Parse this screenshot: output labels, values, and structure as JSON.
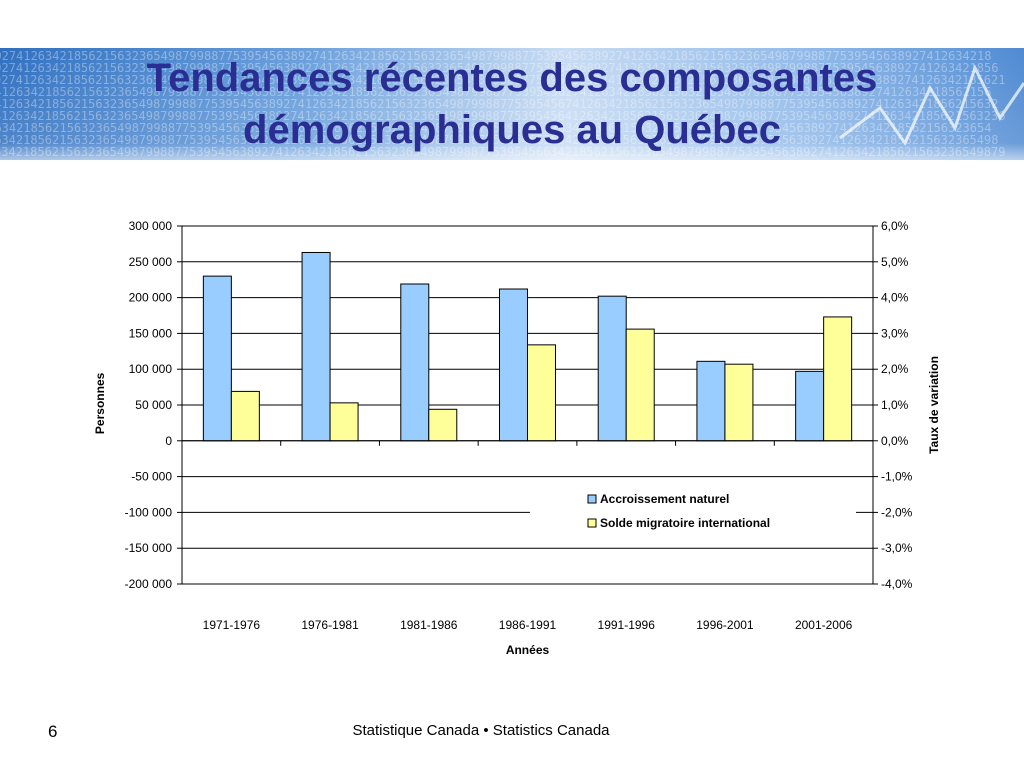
{
  "slide": {
    "title_line1": "Tendances récentes des composantes",
    "title_line2": "démographiques au Québec",
    "footer": "Statistique Canada • Statistics Canada",
    "page_number": "6",
    "banner_digits": "389274126342185621563236549879988775395456",
    "colors": {
      "title": "#2a2e92",
      "banner": "#2f6fc0"
    }
  },
  "chart_data": {
    "type": "bar",
    "categories": [
      "1971-1976",
      "1976-1981",
      "1981-1986",
      "1986-1991",
      "1991-1996",
      "1996-2001",
      "2001-2006"
    ],
    "series": [
      {
        "name": "Accroissement naturel",
        "color": "#99ccff",
        "values": [
          230000,
          263000,
          219000,
          212000,
          202000,
          111000,
          97000
        ]
      },
      {
        "name": "Solde migratoire international",
        "color": "#ffff99",
        "values": [
          69000,
          53000,
          44000,
          134000,
          156000,
          107000,
          173000
        ]
      }
    ],
    "xlabel": "Années",
    "ylabel": "Personnes",
    "y2label": "Taux de variation",
    "ylim": [
      -200000,
      300000
    ],
    "y_ticks": [
      300000,
      250000,
      200000,
      150000,
      100000,
      50000,
      0,
      -50000,
      -100000,
      -150000,
      -200000
    ],
    "y_tick_labels": [
      "300 000",
      "250 000",
      "200 000",
      "150 000",
      "100 000",
      "50 000",
      "0",
      "-50 000",
      "-100 000",
      "-150 000",
      "-200 000"
    ],
    "y2lim": [
      -4.0,
      6.0
    ],
    "y2_tick_labels": [
      "6,0%",
      "5,0%",
      "4,0%",
      "3,0%",
      "2,0%",
      "1,0%",
      "0,0%",
      "-1,0%",
      "-2,0%",
      "-3,0%",
      "-4,0%"
    ],
    "grid": true,
    "legend_position": "lower-right"
  }
}
